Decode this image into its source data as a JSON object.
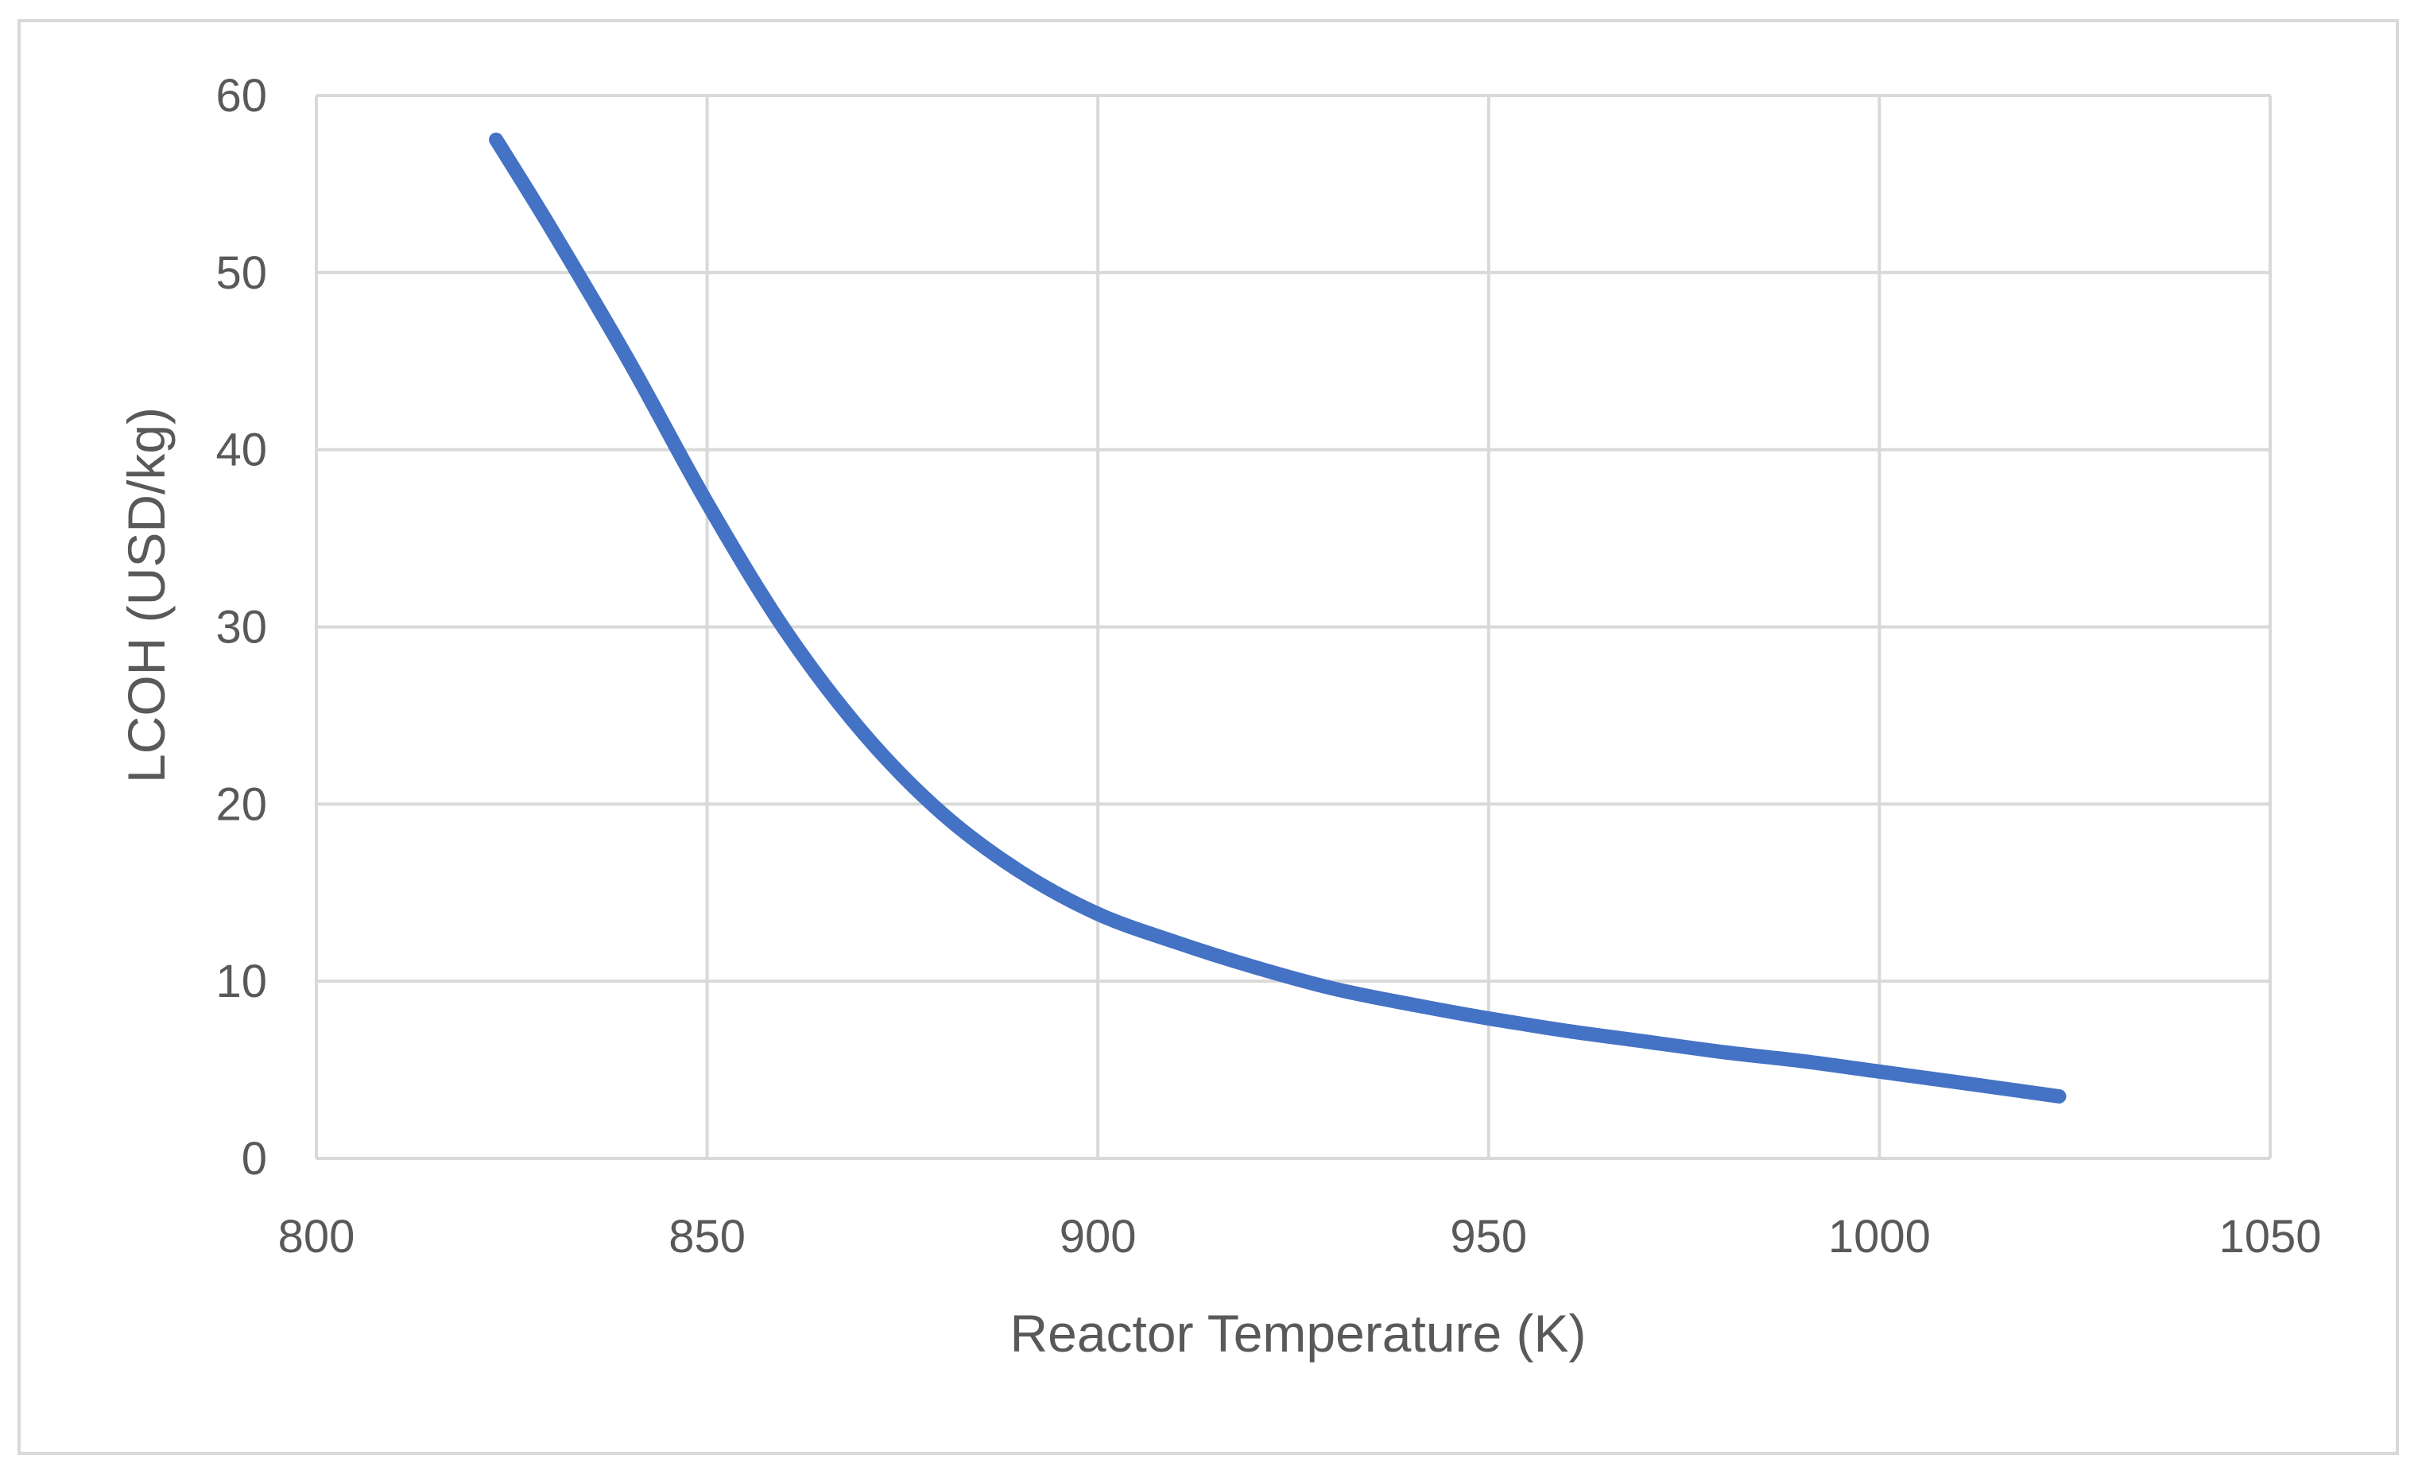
{
  "chart_data": {
    "type": "line",
    "title": "",
    "xlabel": "Reactor  Temperature (K)",
    "ylabel": "LCOH (USD/kg)",
    "xlim": [
      800,
      1050
    ],
    "ylim": [
      0,
      60
    ],
    "x_ticks": [
      800,
      850,
      900,
      950,
      1000,
      1050
    ],
    "y_ticks": [
      0,
      10,
      20,
      30,
      40,
      50,
      60
    ],
    "grid": true,
    "legend": "none",
    "series": [
      {
        "name": "LCOH",
        "color": "#4472c4",
        "x": [
          823,
          830,
          840,
          850,
          860,
          870,
          880,
          890,
          900,
          910,
          920,
          930,
          940,
          950,
          960,
          970,
          980,
          990,
          1000,
          1010,
          1023
        ],
        "y": [
          57.5,
          52.5,
          45.0,
          37.0,
          29.8,
          24.0,
          19.5,
          16.2,
          13.8,
          12.2,
          10.8,
          9.6,
          8.7,
          7.9,
          7.2,
          6.6,
          6.0,
          5.5,
          4.9,
          4.3,
          3.5
        ]
      }
    ]
  }
}
